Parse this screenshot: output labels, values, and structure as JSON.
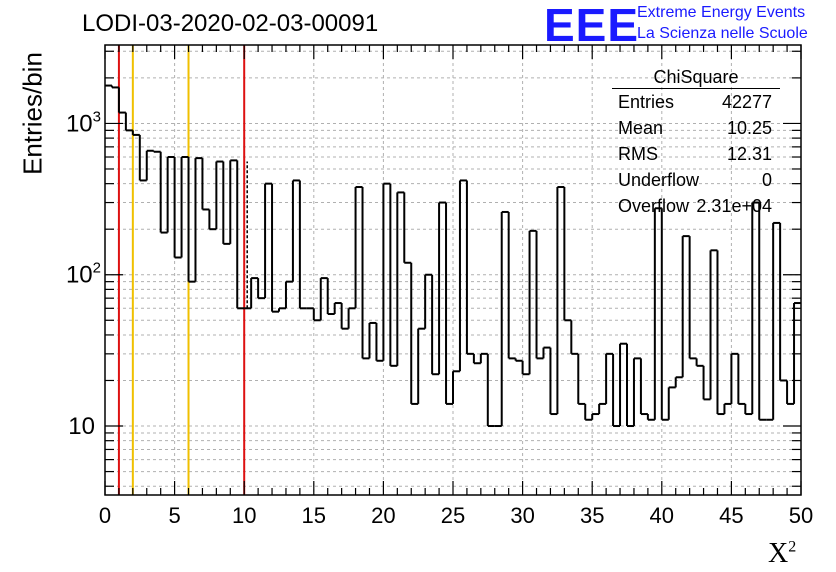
{
  "title": "LODI-03-2020-02-03-00091",
  "logo": {
    "mark": "EEE",
    "line1": "Extreme Energy Events",
    "line2": "La Scienza nelle Scuole"
  },
  "stats_box": {
    "name": "ChiSquare",
    "rows": [
      {
        "key": "Entries",
        "value": "42277"
      },
      {
        "key": "Mean",
        "value": "10.25"
      },
      {
        "key": "RMS",
        "value": "12.31"
      },
      {
        "key": "Underflow",
        "value": "0"
      },
      {
        "key": "Overflow",
        "value": "2.31e+04"
      }
    ]
  },
  "colors": {
    "histogram": "#000000",
    "red_lines": "#dd1111",
    "yellow_lines": "#f0c000",
    "grid": "#b0b0b0"
  },
  "chart_data": {
    "type": "bar",
    "style": "step-histogram",
    "xlabel": "X",
    "xlabel_sup": "2",
    "ylabel": "Entries/bin",
    "xlim": [
      0,
      50
    ],
    "ylim": [
      3.5,
      3300
    ],
    "yscale": "log",
    "grid": true,
    "bin_width": 0.5,
    "x_ticks": [
      0,
      5,
      10,
      15,
      20,
      25,
      30,
      35,
      40,
      45,
      50
    ],
    "y_ticks": [
      {
        "value": 10,
        "label": "10",
        "sup": ""
      },
      {
        "value": 100,
        "label": "10",
        "sup": "2"
      },
      {
        "value": 1000,
        "label": "10",
        "sup": "3"
      }
    ],
    "bin_values": [
      1780,
      1730,
      1180,
      900,
      840,
      420,
      660,
      650,
      190,
      600,
      130,
      600,
      90,
      590,
      270,
      200,
      560,
      160,
      570,
      60,
      60,
      95,
      70,
      400,
      57,
      60,
      90,
      420,
      60,
      60,
      50,
      95,
      55,
      65,
      44,
      60,
      380,
      28,
      48,
      27,
      400,
      25,
      350,
      120,
      14,
      44,
      100,
      22,
      300,
      14,
      23,
      420,
      30,
      26,
      30,
      10,
      10,
      260,
      28,
      27,
      22,
      195,
      28,
      33,
      12,
      380,
      50,
      30,
      14,
      11,
      12,
      14,
      30,
      10,
      35,
      10,
      28,
      12,
      11,
      275,
      11,
      18,
      21,
      180,
      28,
      25,
      15,
      145,
      12,
      14,
      30,
      14,
      12,
      300,
      11,
      11,
      220,
      20,
      14,
      65
    ],
    "vertical_lines": [
      {
        "x": 1,
        "color": "red"
      },
      {
        "x": 2,
        "color": "yellow"
      },
      {
        "x": 6,
        "color": "yellow"
      },
      {
        "x": 10,
        "color": "red"
      }
    ]
  }
}
